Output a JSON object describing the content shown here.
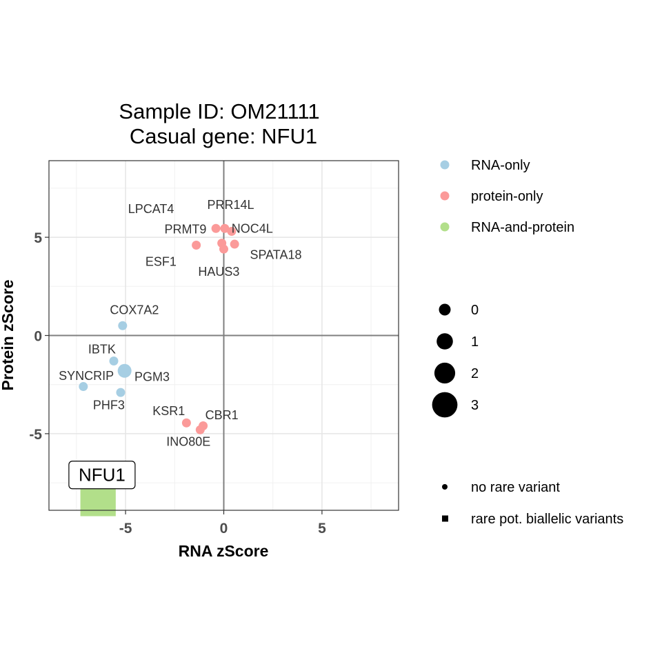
{
  "chart_data": {
    "type": "scatter",
    "title": [
      "Sample ID: OM21111",
      "Casual gene: NFU1"
    ],
    "xlabel": "RNA zScore",
    "ylabel": "Protein zScore",
    "xlim": [
      -8.9,
      8.9
    ],
    "ylim": [
      -8.9,
      8.9
    ],
    "xticks": [
      -5,
      0,
      5
    ],
    "xtick_labels": [
      "-5",
      "0",
      "5"
    ],
    "yticks": [
      -5,
      0,
      5
    ],
    "ytick_labels": [
      "-5",
      "0",
      "5"
    ],
    "grid": true,
    "reference_lines": {
      "x": 0,
      "y": 0
    },
    "categories": {
      "RNA-only": "#a6cee3",
      "protein-only": "#fb9a99",
      "RNA-and-protein": "#b2df8a"
    },
    "points": [
      {
        "gene": "PRR14L",
        "x": 0.05,
        "y": 5.45,
        "category": "protein-only",
        "shape": "circle",
        "rare_variants": 0,
        "label_dx": 0.3,
        "label_dy": 1.2
      },
      {
        "gene": "LPCAT4",
        "x": -0.4,
        "y": 5.45,
        "category": "protein-only",
        "shape": "circle",
        "rare_variants": 0,
        "label_dx": -3.3,
        "label_dy": 1.0
      },
      {
        "gene": "PRMT9",
        "x": -1.4,
        "y": 4.6,
        "category": "protein-only",
        "shape": "circle",
        "rare_variants": 0,
        "label_dx": -0.55,
        "label_dy": 0.8
      },
      {
        "gene": "NOC4L",
        "x": 0.4,
        "y": 5.3,
        "category": "protein-only",
        "shape": "circle",
        "rare_variants": 0,
        "label_dx": 1.05,
        "label_dy": 0.15
      },
      {
        "gene": "ESF1",
        "x": -0.1,
        "y": 4.7,
        "category": "protein-only",
        "shape": "circle",
        "rare_variants": 0,
        "label_dx": -3.1,
        "label_dy": -0.95
      },
      {
        "gene": "HAUS3",
        "x": 0.0,
        "y": 4.4,
        "category": "protein-only",
        "shape": "circle",
        "rare_variants": 0,
        "label_dx": -0.25,
        "label_dy": -1.15
      },
      {
        "gene": "SPATA18",
        "x": 0.55,
        "y": 4.65,
        "category": "protein-only",
        "shape": "circle",
        "rare_variants": 0,
        "label_dx": 2.1,
        "label_dy": -0.55
      },
      {
        "gene": "COX7A2",
        "x": -5.15,
        "y": 0.5,
        "category": "RNA-only",
        "shape": "circle",
        "rare_variants": 0,
        "label_dx": 0.6,
        "label_dy": 0.8
      },
      {
        "gene": "IBTK",
        "x": -5.6,
        "y": -1.3,
        "category": "RNA-only",
        "shape": "circle",
        "rare_variants": 0,
        "label_dx": -0.6,
        "label_dy": 0.6
      },
      {
        "gene": "PGM3",
        "x": -5.05,
        "y": -1.8,
        "category": "RNA-only",
        "shape": "circle",
        "rare_variants": 1,
        "label_dx": 1.4,
        "label_dy": -0.3
      },
      {
        "gene": "SYNCRIP",
        "x": -7.15,
        "y": -2.6,
        "category": "RNA-only",
        "shape": "circle",
        "rare_variants": 0,
        "label_dx": 0.15,
        "label_dy": 0.55
      },
      {
        "gene": "PHF3",
        "x": -5.25,
        "y": -2.9,
        "category": "RNA-only",
        "shape": "circle",
        "rare_variants": 0,
        "label_dx": -0.6,
        "label_dy": -0.65
      },
      {
        "gene": "KSR1",
        "x": -1.9,
        "y": -4.45,
        "category": "protein-only",
        "shape": "circle",
        "rare_variants": 0,
        "label_dx": -0.9,
        "label_dy": 0.6
      },
      {
        "gene": "CBR1",
        "x": -1.05,
        "y": -4.6,
        "category": "protein-only",
        "shape": "circle",
        "rare_variants": 0,
        "label_dx": 0.95,
        "label_dy": 0.55
      },
      {
        "gene": "INO80E",
        "x": -1.2,
        "y": -4.8,
        "category": "protein-only",
        "shape": "circle",
        "rare_variants": 0,
        "label_dx": -0.6,
        "label_dy": -0.6
      },
      {
        "gene": "NFU1",
        "x": -6.4,
        "y": -8.3,
        "category": "RNA-and-protein",
        "shape": "square",
        "rare_variants": 0,
        "label_dx": 0.0,
        "label_dy": 0.0
      }
    ],
    "highlight_label": {
      "gene": "NFU1",
      "x": -6.2,
      "y": -7.1
    },
    "legend_color": {
      "placement": "right",
      "items": [
        {
          "label": "RNA-only",
          "color": "#a6cee3"
        },
        {
          "label": "protein-only",
          "color": "#fb9a99"
        },
        {
          "label": "RNA-and-protein",
          "color": "#b2df8a"
        }
      ]
    },
    "legend_size": {
      "placement": "right",
      "items": [
        {
          "label": "0",
          "value": 0
        },
        {
          "label": "1",
          "value": 1
        },
        {
          "label": "2",
          "value": 2
        },
        {
          "label": "3",
          "value": 3
        }
      ]
    },
    "legend_shape": {
      "placement": "right",
      "items": [
        {
          "label": "no rare variant",
          "shape": "circle"
        },
        {
          "label": "rare pot. biallelic variants",
          "shape": "square"
        }
      ]
    }
  }
}
